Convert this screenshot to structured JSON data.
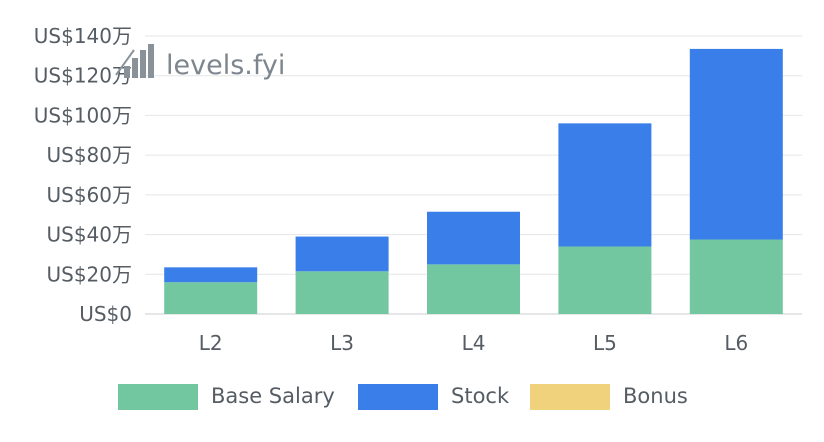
{
  "watermark": {
    "text": "levels.fyi",
    "icon": "staircase-logo-icon"
  },
  "chart_data": {
    "type": "bar",
    "stacked": true,
    "categories": [
      "L2",
      "L3",
      "L4",
      "L5",
      "L6"
    ],
    "series": [
      {
        "name": "Base Salary",
        "color": "#72c7a0",
        "values": [
          16,
          21.5,
          25,
          34,
          37.5
        ]
      },
      {
        "name": "Stock",
        "color": "#397ee9",
        "values": [
          7.5,
          17.5,
          26.5,
          62,
          96
        ]
      },
      {
        "name": "Bonus",
        "color": "#f0d27c",
        "values": [
          0,
          0,
          0,
          0,
          0
        ]
      }
    ],
    "ylim": [
      0,
      140
    ],
    "yticks": [
      0,
      20,
      40,
      60,
      80,
      100,
      120,
      140
    ],
    "ytick_labels": [
      "US$0",
      "US$20万",
      "US$40万",
      "US$60万",
      "US$80万",
      "US$100万",
      "US$120万",
      "US$140万"
    ],
    "grid": true,
    "legend_position": "bottom"
  }
}
